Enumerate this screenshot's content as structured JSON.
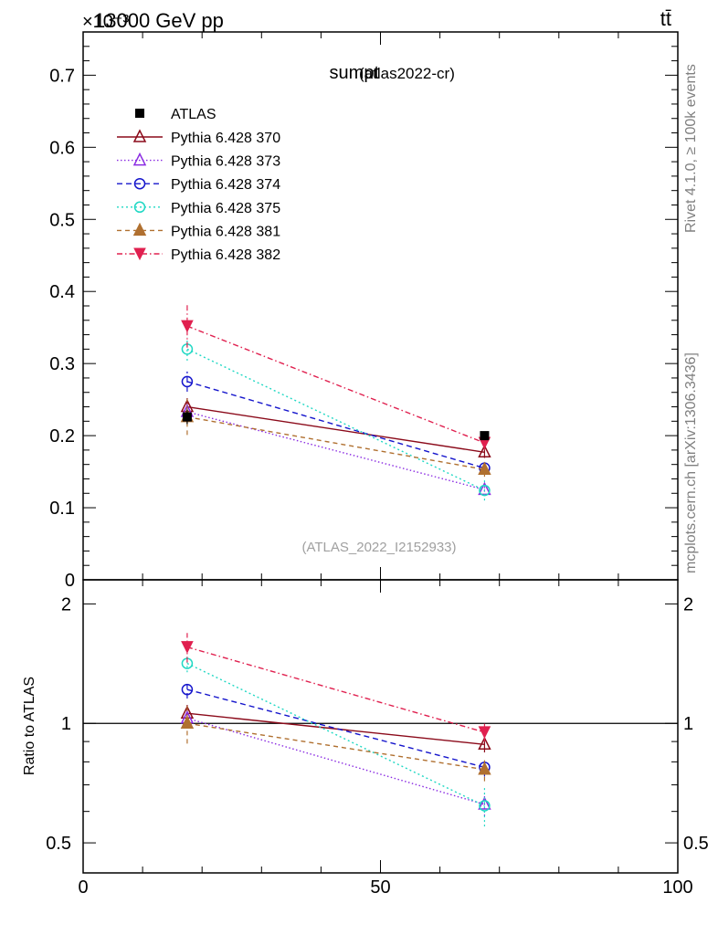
{
  "header": {
    "left_label": "13000 GeV pp",
    "right_label": "tt̄",
    "exponent_label": "×10⁻³"
  },
  "side_text": {
    "rivet": "Rivet 4.1.0, ≥ 100k events",
    "mcplots": "mcplots.cern.ch [arXiv:1306.3436]"
  },
  "chart_data": {
    "type": "line",
    "title": "sumpt",
    "subtitle": "(atlas2022-cr)",
    "analysis_label": "(ATLAS_2022_I2152933)",
    "xlabel": "",
    "ylabel": "",
    "ratio_ylabel": "Ratio to ATLAS",
    "xlim": [
      0,
      100
    ],
    "ylim": [
      0,
      0.76
    ],
    "y_scale_note": "×10⁻³",
    "ratio_ylim": [
      0.42,
      2.3
    ],
    "x_ticks": [
      0,
      50,
      100
    ],
    "x_tick_labels": [
      "0",
      "50",
      "100"
    ],
    "y_ticks": [
      0,
      0.1,
      0.2,
      0.3,
      0.4,
      0.5,
      0.6,
      0.7
    ],
    "y_tick_labels": [
      "0",
      "0.1",
      "0.2",
      "0.3",
      "0.4",
      "0.5",
      "0.6",
      "0.7"
    ],
    "ratio_ticks": [
      0.5,
      1,
      2
    ],
    "ratio_tick_labels": [
      "0.5",
      "1",
      "2"
    ],
    "x": [
      17.5,
      67.5
    ],
    "reference": {
      "name": "ATLAS",
      "values": [
        0.226,
        0.2
      ],
      "errors": [
        0.01,
        0.005
      ]
    },
    "series": [
      {
        "name": "Pythia 6.428 370",
        "values": [
          0.24,
          0.177
        ],
        "errors": [
          0.012,
          0.008
        ],
        "color": "#8b0a1a",
        "dash": "",
        "marker": "triangle-open",
        "ratio": [
          1.06,
          0.885
        ]
      },
      {
        "name": "Pythia 6.428 373",
        "values": [
          0.233,
          0.125
        ],
        "errors": [
          0.012,
          0.008
        ],
        "color": "#8a2be2",
        "dash": "1.5,2.5",
        "marker": "triangle-open",
        "ratio": [
          1.03,
          0.625
        ]
      },
      {
        "name": "Pythia 6.428 374",
        "values": [
          0.275,
          0.155
        ],
        "errors": [
          0.014,
          0.008
        ],
        "color": "#1515cc",
        "dash": "6,4",
        "marker": "circle-open",
        "ratio": [
          1.217,
          0.775
        ]
      },
      {
        "name": "Pythia 6.428 375",
        "values": [
          0.32,
          0.124
        ],
        "errors": [
          0.016,
          0.014
        ],
        "color": "#20d8c4",
        "dash": "2,3",
        "marker": "circle-open",
        "ratio": [
          1.416,
          0.62
        ]
      },
      {
        "name": "Pythia 6.428 381",
        "values": [
          0.226,
          0.153
        ],
        "errors": [
          0.025,
          0.01
        ],
        "color": "#b07030",
        "dash": "5,4",
        "marker": "triangle-filled",
        "ratio": [
          1.0,
          0.765
        ]
      },
      {
        "name": "Pythia 6.428 382",
        "values": [
          0.352,
          0.19
        ],
        "errors": [
          0.03,
          0.01
        ],
        "color": "#e0204f",
        "dash": "6,3,1.5,3",
        "marker": "triangle-down-filled",
        "ratio": [
          1.557,
          0.95
        ]
      }
    ]
  }
}
